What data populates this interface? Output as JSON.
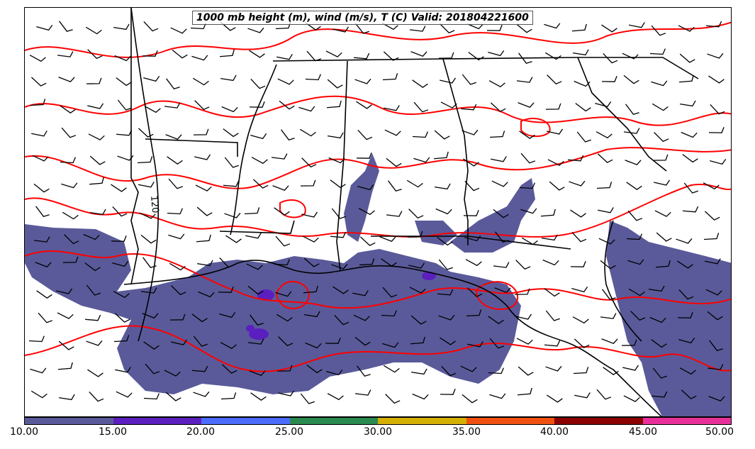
{
  "title": "1000 mb height (m), wind (m/s), T (C) Valid: 201804221600",
  "contour_label": "120",
  "colorbar": {
    "colors": [
      "#5a5a9a",
      "#5b1fbf",
      "#4b6cff",
      "#2a8a50",
      "#d4b000",
      "#f05010",
      "#8b0000",
      "#e8309a"
    ],
    "tick_labels": [
      "10.00",
      "15.00",
      "20.00",
      "25.00",
      "30.00",
      "35.00",
      "40.00",
      "45.00",
      "50.00"
    ]
  },
  "legend_colors": {
    "temperature_contour": "#ff0000",
    "height_contour": "#000000",
    "boundaries": "#000000",
    "wind_barbs": "#000000"
  }
}
